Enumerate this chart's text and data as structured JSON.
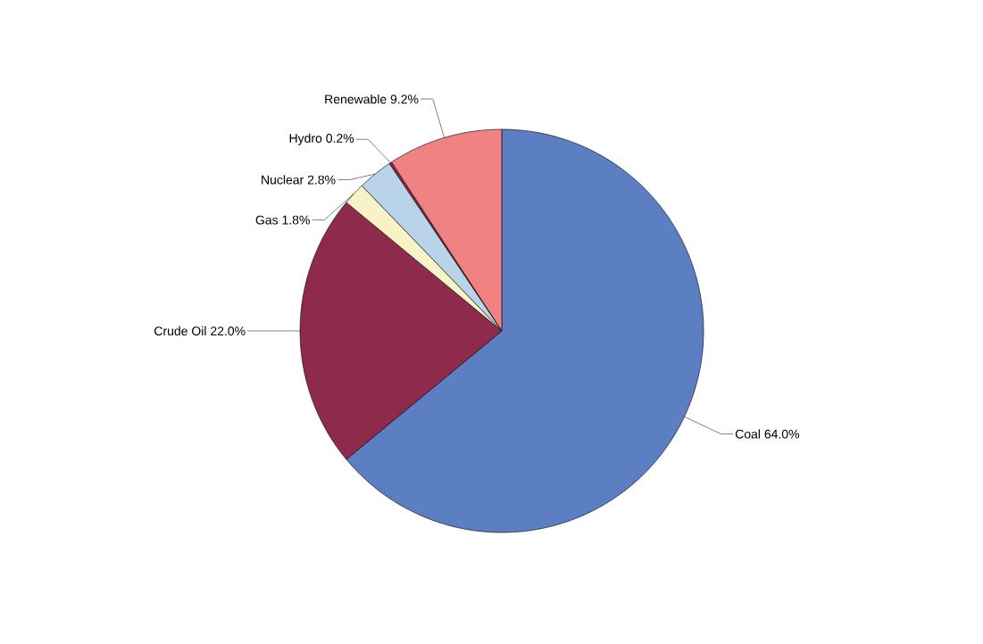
{
  "chart_data": {
    "type": "pie",
    "categories": [
      "Coal",
      "Crude Oil",
      "Gas",
      "Nuclear",
      "Hydro",
      "Renewable"
    ],
    "values": [
      64.0,
      22.0,
      1.8,
      2.8,
      0.2,
      9.2
    ],
    "value_labels": [
      "64.0%",
      "22.0%",
      "1.8%",
      "2.8%",
      "0.2%",
      "9.2%"
    ],
    "colors": [
      "#5b7fc2",
      "#8e2b4c",
      "#f7f3c6",
      "#b9d3e9",
      "#8e2b4c",
      "#f08282"
    ]
  }
}
